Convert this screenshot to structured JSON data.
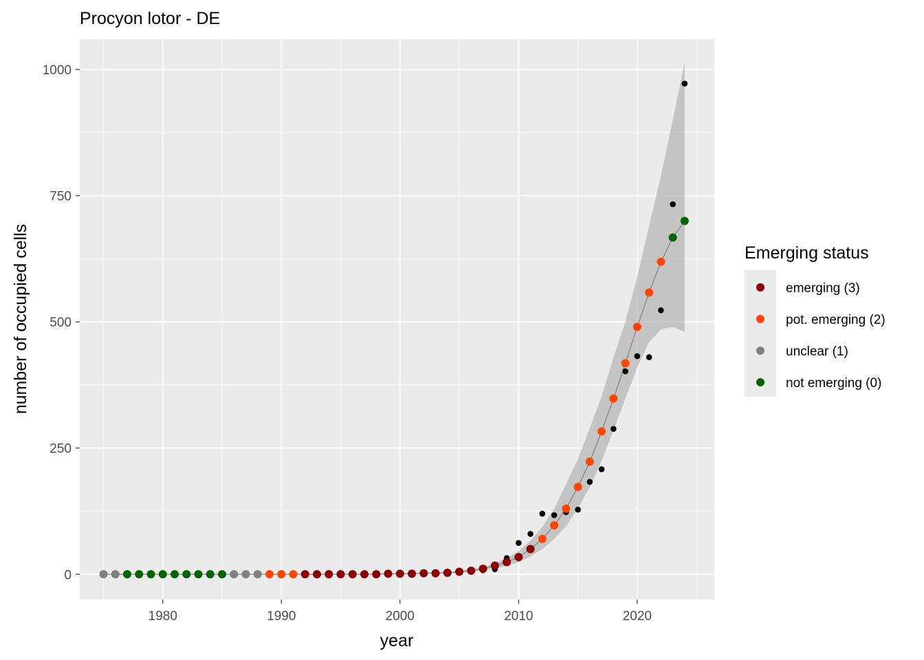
{
  "chart_data": {
    "type": "scatter",
    "title": "Procyon lotor - DE",
    "xlabel": "year",
    "ylabel": "number of occupied cells",
    "xlim": [
      1973,
      2026.5
    ],
    "ylim": [
      -50,
      1060
    ],
    "x_ticks": [
      1980,
      1990,
      2000,
      2010,
      2020
    ],
    "y_ticks": [
      0,
      250,
      500,
      750,
      1000
    ],
    "x_tick_labels": [
      "1980",
      "1990",
      "2000",
      "2010",
      "2020"
    ],
    "y_tick_labels": [
      "0",
      "250",
      "500",
      "750",
      "1000"
    ],
    "grid": true,
    "legend": {
      "title": "Emerging status",
      "position": "right",
      "entries": [
        {
          "label": "emerging (3)",
          "color": "#8B0000"
        },
        {
          "label": "pot. emerging (2)",
          "color": "#FF4500"
        },
        {
          "label": "unclear (1)",
          "color": "#808080"
        },
        {
          "label": "not emerging (0)",
          "color": "#006400"
        }
      ]
    },
    "observed": {
      "color": "#000000",
      "x": [
        1975,
        1976,
        1977,
        1978,
        1979,
        1980,
        1981,
        1982,
        1983,
        1984,
        1985,
        1986,
        1987,
        1988,
        1989,
        1990,
        1991,
        1992,
        1993,
        1994,
        1995,
        1996,
        1997,
        1998,
        1999,
        2000,
        2001,
        2002,
        2003,
        2004,
        2005,
        2006,
        2007,
        2008,
        2009,
        2010,
        2011,
        2012,
        2013,
        2014,
        2015,
        2016,
        2017,
        2018,
        2019,
        2020,
        2021,
        2022,
        2023,
        2024
      ],
      "y": [
        0,
        0,
        0,
        0,
        0,
        0,
        0,
        0,
        0,
        0,
        0,
        0,
        0,
        0,
        0,
        0,
        0,
        0,
        0,
        0,
        0,
        0,
        0,
        0,
        1,
        1,
        1,
        2,
        2,
        3,
        4,
        6,
        8,
        10,
        32,
        62,
        80,
        120,
        117,
        123,
        128,
        183,
        208,
        288,
        402,
        432,
        430,
        523,
        733,
        972
      ]
    },
    "fitted": {
      "color": "#808080",
      "x": [
        1975,
        1976,
        1977,
        1978,
        1979,
        1980,
        1981,
        1982,
        1983,
        1984,
        1985,
        1986,
        1987,
        1988,
        1989,
        1990,
        1991,
        1992,
        1993,
        1994,
        1995,
        1996,
        1997,
        1998,
        1999,
        2000,
        2001,
        2002,
        2003,
        2004,
        2005,
        2006,
        2007,
        2008,
        2009,
        2010,
        2011,
        2012,
        2013,
        2014,
        2015,
        2016,
        2017,
        2018,
        2019,
        2020,
        2021,
        2022,
        2023,
        2024
      ],
      "y": [
        0,
        0,
        0,
        0,
        0,
        0,
        0,
        0,
        0,
        0,
        0,
        0,
        0,
        0,
        0,
        0,
        0,
        0,
        0,
        0,
        0,
        0,
        0,
        0,
        1,
        1,
        1,
        2,
        2,
        3,
        5,
        7,
        11,
        17,
        24,
        34,
        50,
        70,
        97,
        130,
        173,
        223,
        283,
        348,
        418,
        490,
        558,
        619,
        667,
        700
      ],
      "status": [
        1,
        1,
        0,
        0,
        0,
        0,
        0,
        0,
        0,
        0,
        0,
        1,
        1,
        1,
        2,
        2,
        2,
        3,
        3,
        3,
        3,
        3,
        3,
        3,
        3,
        3,
        3,
        3,
        3,
        3,
        3,
        3,
        3,
        3,
        3,
        3,
        3,
        2,
        2,
        2,
        2,
        2,
        2,
        2,
        2,
        2,
        2,
        2,
        0,
        0
      ],
      "lower": [
        0,
        0,
        0,
        0,
        0,
        0,
        0,
        0,
        0,
        0,
        0,
        0,
        0,
        0,
        0,
        0,
        0,
        0,
        0,
        0,
        0,
        0,
        0,
        0,
        0,
        0,
        0,
        1,
        1,
        2,
        3,
        5,
        8,
        12,
        17,
        24,
        35,
        50,
        70,
        95,
        130,
        172,
        225,
        285,
        348,
        410,
        460,
        485,
        490,
        480
      ],
      "upper": [
        1,
        1,
        1,
        1,
        1,
        1,
        1,
        1,
        1,
        1,
        1,
        1,
        1,
        1,
        1,
        1,
        1,
        1,
        1,
        1,
        1,
        1,
        1,
        1,
        2,
        2,
        3,
        3,
        4,
        5,
        7,
        10,
        14,
        22,
        32,
        46,
        66,
        94,
        130,
        178,
        228,
        290,
        352,
        430,
        500,
        590,
        690,
        790,
        900,
        1015
      ]
    }
  }
}
